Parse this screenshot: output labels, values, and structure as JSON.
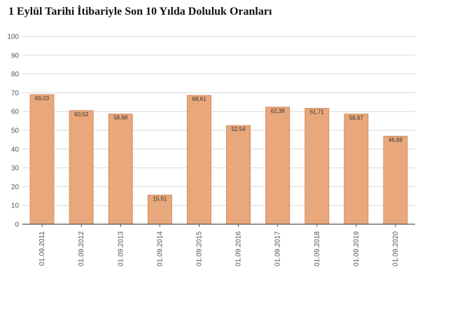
{
  "title": "1 Eylül Tarihi İtibariyle Son 10 Yılda Doluluk Oranları",
  "chart_data": {
    "type": "bar",
    "title": "1 Eylül Tarihi İtibariyle Son 10 Yılda Doluluk Oranları",
    "categories": [
      "01.09.2011",
      "01.09.2012",
      "01.09.2013",
      "01.09.2014",
      "01.09.2015",
      "01.09.2016",
      "01.09.2017",
      "01.09.2018",
      "01.09.2019",
      "01.09.2020"
    ],
    "values": [
      69.03,
      60.53,
      58.68,
      15.51,
      68.61,
      52.54,
      62.38,
      61.71,
      58.67,
      46.88
    ],
    "data_labels": [
      "69,03",
      "60,53",
      "58,68",
      "15,51",
      "68,61",
      "52,54",
      "62,38",
      "61,71",
      "58,67",
      "46,88"
    ],
    "y_ticks": [
      0,
      10,
      20,
      30,
      40,
      50,
      60,
      70,
      80,
      90,
      100
    ],
    "ylim": [
      0,
      100
    ],
    "grid": true,
    "legend": "none",
    "bar_color": "#e8a87c",
    "bar_border_color": "#d48f62",
    "grid_color": "#d9d9d9",
    "axis_color": "#555555"
  }
}
